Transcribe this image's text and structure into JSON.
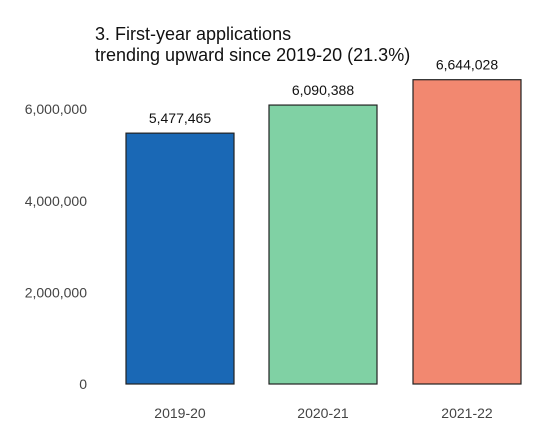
{
  "chart_data": {
    "type": "bar",
    "title_lines": [
      "3. First-year applications",
      "trending upward since 2019-20 (21.3%)"
    ],
    "categories": [
      "2019-20",
      "2020-21",
      "2021-22"
    ],
    "values": [
      5477465,
      6090388,
      6644028
    ],
    "data_labels": [
      "5,477,465",
      "6,090,388",
      "6,644,028"
    ],
    "colors": [
      "#1a68b5",
      "#80d1a4",
      "#f28870"
    ],
    "bar_outline_color": "#222222",
    "yticks": [
      {
        "value": 0,
        "label": "0"
      },
      {
        "value": 2000000,
        "label": "2,000,000"
      },
      {
        "value": 4000000,
        "label": "4,000,000"
      },
      {
        "value": 6000000,
        "label": "6,000,000"
      }
    ],
    "ylim": [
      0,
      7000000
    ],
    "grid": false,
    "xlabel": "",
    "ylabel": ""
  }
}
